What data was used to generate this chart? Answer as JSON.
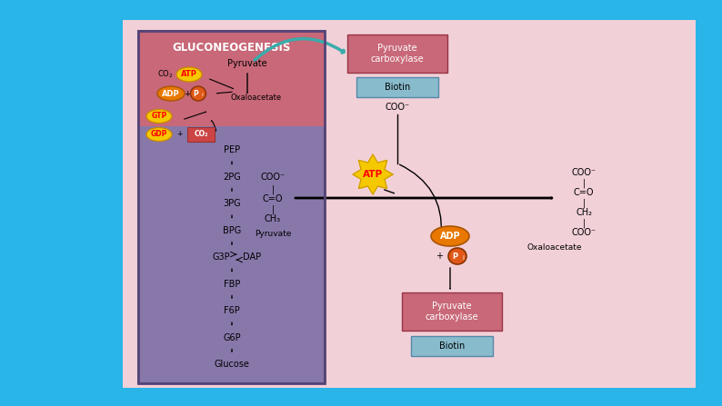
{
  "bg_outer": "#29b5e8",
  "bg_inner": "#f2d0d8",
  "left_panel_bg": "#8878aa",
  "left_top_bg": "#c86878",
  "title": "GLUCONEOGENESIS",
  "biotin_color": "#88bbcc",
  "pc_box_color": "#c86878",
  "atp_yellow": "#f5c800",
  "atp_orange": "#e87800",
  "pi_orange": "#e05818",
  "gtp_yellow": "#f5c800",
  "co2_red": "#cc4444",
  "teal_arrow": "#3aacaa",
  "metabolites": [
    "PEP",
    "2PG",
    "3PG",
    "BPG",
    "G3P",
    "FBP",
    "F6P",
    "G6P",
    "Glucose"
  ]
}
